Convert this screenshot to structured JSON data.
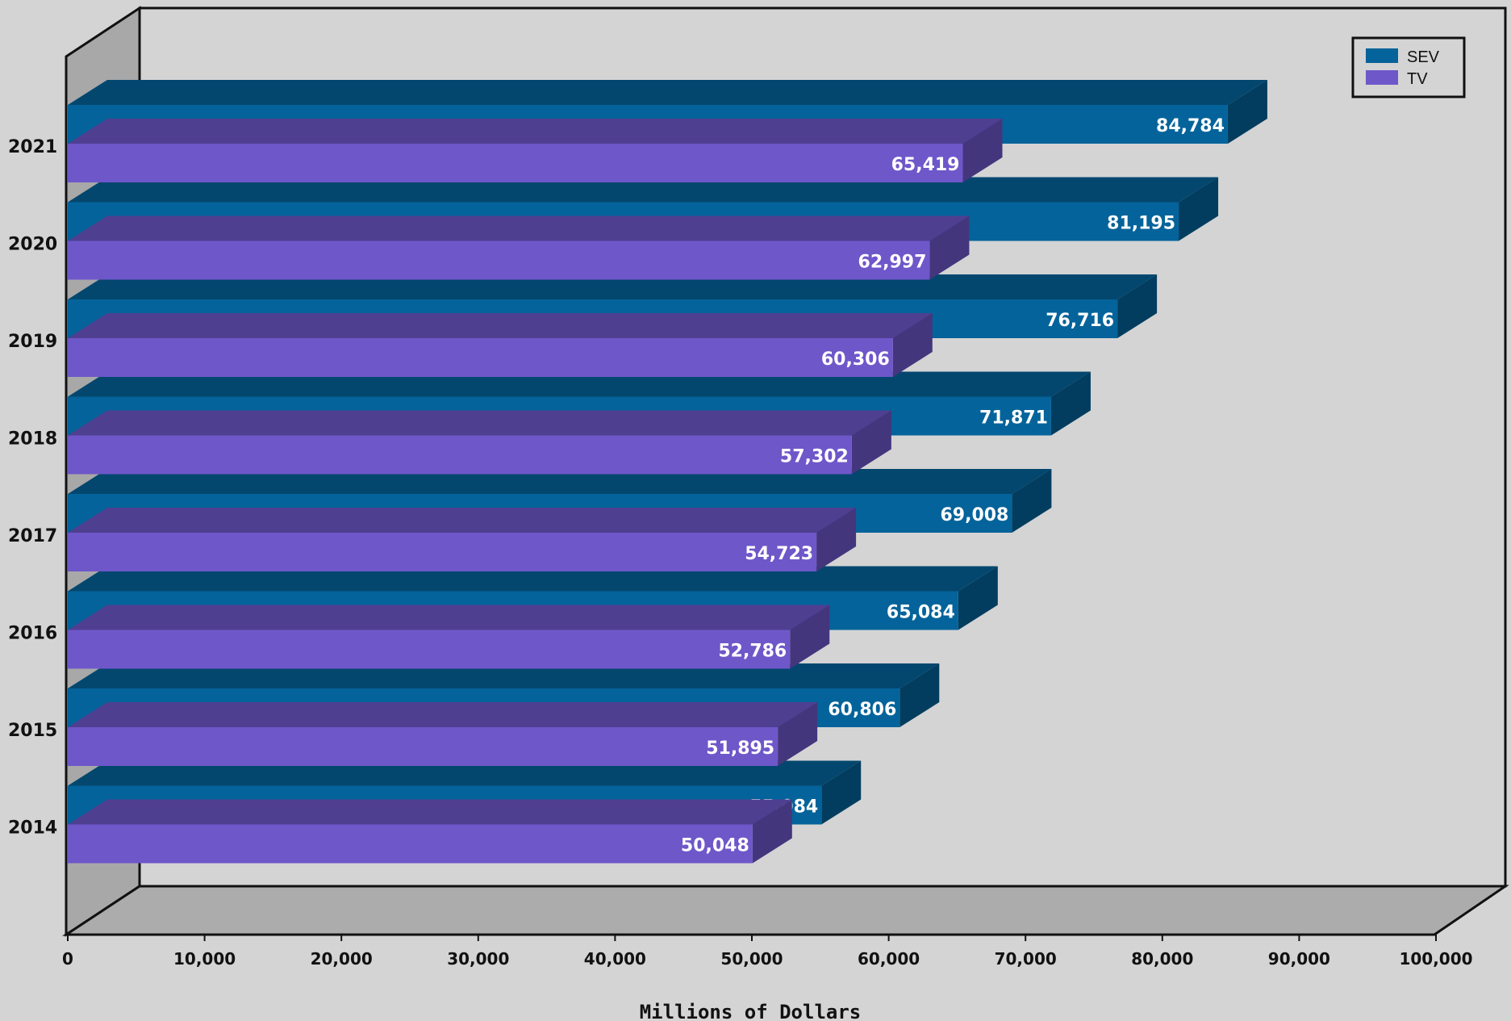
{
  "chart_data": {
    "type": "bar",
    "orientation": "horizontal",
    "three_d": true,
    "categories": [
      "2014",
      "2015",
      "2016",
      "2017",
      "2018",
      "2019",
      "2020",
      "2021"
    ],
    "series": [
      {
        "name": "SEV",
        "color": "#04639a",
        "values": [
          55084,
          60806,
          65084,
          69008,
          71871,
          76716,
          81195,
          84784
        ]
      },
      {
        "name": "TV",
        "color": "#6e57c9",
        "values": [
          50048,
          51895,
          52786,
          54723,
          57302,
          60306,
          62997,
          65419
        ]
      }
    ],
    "value_labels": {
      "SEV": [
        "55,084",
        "60,806",
        "65,084",
        "69,008",
        "71,871",
        "76,716",
        "81,195",
        "84,784"
      ],
      "TV": [
        "50,048",
        "51,895",
        "52,786",
        "54,723",
        "57,302",
        "60,306",
        "62,997",
        "65,419"
      ]
    },
    "xlim": [
      0,
      100000
    ],
    "xticks": [
      0,
      10000,
      20000,
      30000,
      40000,
      50000,
      60000,
      70000,
      80000,
      90000,
      100000
    ],
    "xtick_labels": [
      "0",
      "10,000",
      "20,000",
      "30,000",
      "40,000",
      "50,000",
      "60,000",
      "70,000",
      "80,000",
      "90,000",
      "100,000"
    ],
    "xlabel": "Millions of Dollars",
    "ylabel": "",
    "title": "",
    "grid": false,
    "legend_position": "top-right"
  }
}
